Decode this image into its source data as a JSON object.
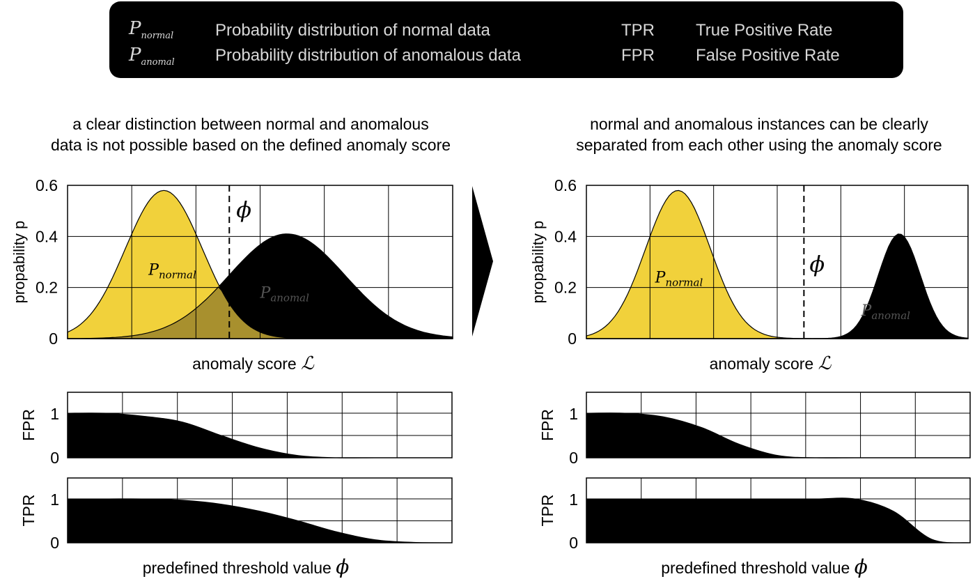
{
  "legend": {
    "items": [
      {
        "symbol": "P_normal",
        "symbol_base": "P",
        "symbol_sub": "normal",
        "text": "Probability distribution of normal data"
      },
      {
        "symbol": "P_anomal",
        "symbol_base": "P",
        "symbol_sub": "anomal",
        "text": "Probability distribution of anomalous data"
      },
      {
        "symbol": "TPR",
        "text": "True Positive Rate"
      },
      {
        "symbol": "FPR",
        "text": "False Positive Rate"
      }
    ]
  },
  "symbols": {
    "phi": "ϕ",
    "script_L": "ℒ",
    "p_base": "P",
    "normal_sub": "normal",
    "anomal_sub": "anomal"
  },
  "panels": {
    "left": {
      "caption_line1": "a clear distinction between normal and anomalous",
      "caption_line2": "data is not possible based on the defined anomaly score"
    },
    "right": {
      "caption_line1": "normal and anomalous instances can be clearly",
      "caption_line2": "separated from each other using the anomaly score"
    }
  },
  "colors": {
    "normal_fill": "#f1d13b",
    "overlap_fill": "#a8902e",
    "anomal_fill": "#000000",
    "grid": "#000000",
    "legend_bg": "#000000"
  },
  "chart_data": [
    {
      "id": "left-density",
      "type": "area",
      "ylabel": "propability p",
      "xlabel": "anomaly score",
      "ylim": [
        0,
        0.6
      ],
      "yticks": [
        0,
        0.2,
        0.4,
        0.6
      ],
      "xlim": [
        0,
        1
      ],
      "grid": true,
      "series": [
        {
          "name": "P_normal",
          "peak": 0.58,
          "mean": 0.25,
          "sd": 0.1
        },
        {
          "name": "P_anomal",
          "peak": 0.41,
          "mean": 0.57,
          "sd": 0.15
        }
      ],
      "threshold": 0.42
    },
    {
      "id": "right-density",
      "type": "area",
      "ylabel": "propability p",
      "xlabel": "anomaly score",
      "ylim": [
        0,
        0.6
      ],
      "yticks": [
        0,
        0.2,
        0.4,
        0.6
      ],
      "xlim": [
        0,
        1
      ],
      "grid": true,
      "series": [
        {
          "name": "P_normal",
          "peak": 0.58,
          "mean": 0.24,
          "sd": 0.085
        },
        {
          "name": "P_anomal",
          "peak": 0.41,
          "mean": 0.82,
          "sd": 0.055
        }
      ],
      "threshold": 0.57
    },
    {
      "id": "left-fpr",
      "type": "area",
      "ylabel": "FPR",
      "ylim": [
        0,
        1
      ],
      "yticks": [
        0,
        1
      ],
      "x": [
        0,
        0.1,
        0.2,
        0.3,
        0.4,
        0.5,
        0.6,
        0.7,
        0.8,
        0.9,
        1.0
      ],
      "values": [
        1.0,
        1.0,
        0.93,
        0.8,
        0.5,
        0.22,
        0.05,
        0.0,
        0.0,
        0.0,
        0.0
      ]
    },
    {
      "id": "left-tpr",
      "type": "area",
      "ylabel": "TPR",
      "xlabel": "predefined threshold value",
      "ylim": [
        0,
        1
      ],
      "yticks": [
        0,
        1
      ],
      "x": [
        0,
        0.1,
        0.2,
        0.3,
        0.4,
        0.5,
        0.6,
        0.7,
        0.8,
        0.9,
        1.0
      ],
      "values": [
        1.0,
        1.0,
        1.0,
        0.97,
        0.88,
        0.72,
        0.5,
        0.25,
        0.07,
        0.01,
        0.0
      ]
    },
    {
      "id": "right-fpr",
      "type": "area",
      "ylabel": "FPR",
      "ylim": [
        0,
        1
      ],
      "yticks": [
        0,
        1
      ],
      "x": [
        0,
        0.1,
        0.2,
        0.3,
        0.4,
        0.5,
        0.6,
        0.7,
        0.8,
        0.9,
        1.0
      ],
      "values": [
        1.0,
        1.0,
        0.92,
        0.68,
        0.3,
        0.05,
        0.0,
        0.0,
        0.0,
        0.0,
        0.0
      ]
    },
    {
      "id": "right-tpr",
      "type": "area",
      "ylabel": "TPR",
      "xlabel": "predefined threshold value",
      "ylim": [
        0,
        1
      ],
      "yticks": [
        0,
        1
      ],
      "x": [
        0,
        0.1,
        0.2,
        0.3,
        0.4,
        0.5,
        0.6,
        0.7,
        0.8,
        0.9,
        1.0
      ],
      "values": [
        1.0,
        1.0,
        1.0,
        1.0,
        1.0,
        1.0,
        1.0,
        1.0,
        0.72,
        0.08,
        0.0
      ]
    }
  ]
}
